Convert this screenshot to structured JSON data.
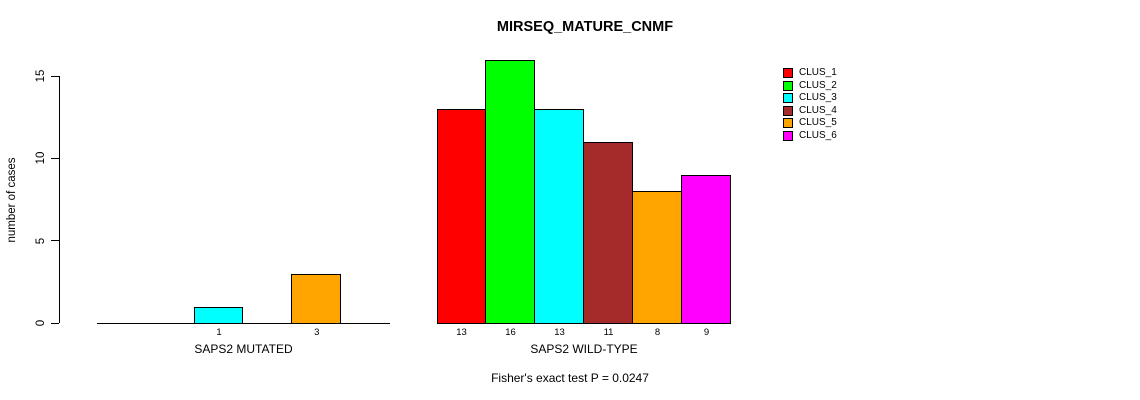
{
  "title": "MIRSEQ_MATURE_CNMF",
  "chart_data": {
    "type": "bar",
    "title": "MIRSEQ_MATURE_CNMF",
    "xlabel": "",
    "ylabel": "number of cases",
    "ylim": [
      0,
      16
    ],
    "yticks": [
      0,
      5,
      10,
      15
    ],
    "grid": false,
    "legend_position": "top-right",
    "categories": [
      "CLUS_1",
      "CLUS_2",
      "CLUS_3",
      "CLUS_4",
      "CLUS_5",
      "CLUS_6"
    ],
    "colors": [
      "#ff0000",
      "#00ff00",
      "#00ffff",
      "#a52a2a",
      "#ffa500",
      "#ff00ff"
    ],
    "groups": [
      {
        "label": "SAPS2 MUTATED",
        "values": [
          0,
          0,
          1,
          0,
          3,
          0
        ]
      },
      {
        "label": "SAPS2 WILD-TYPE",
        "values": [
          13,
          16,
          13,
          11,
          8,
          9
        ]
      }
    ],
    "bar_value_labels": {
      "SAPS2 MUTATED": [
        null,
        null,
        "1",
        null,
        "3",
        null
      ],
      "SAPS2 WILD-TYPE": [
        "13",
        "16",
        "13",
        "11",
        "8",
        "9"
      ]
    },
    "annotation": "Fisher's exact test P = 0.0247"
  }
}
